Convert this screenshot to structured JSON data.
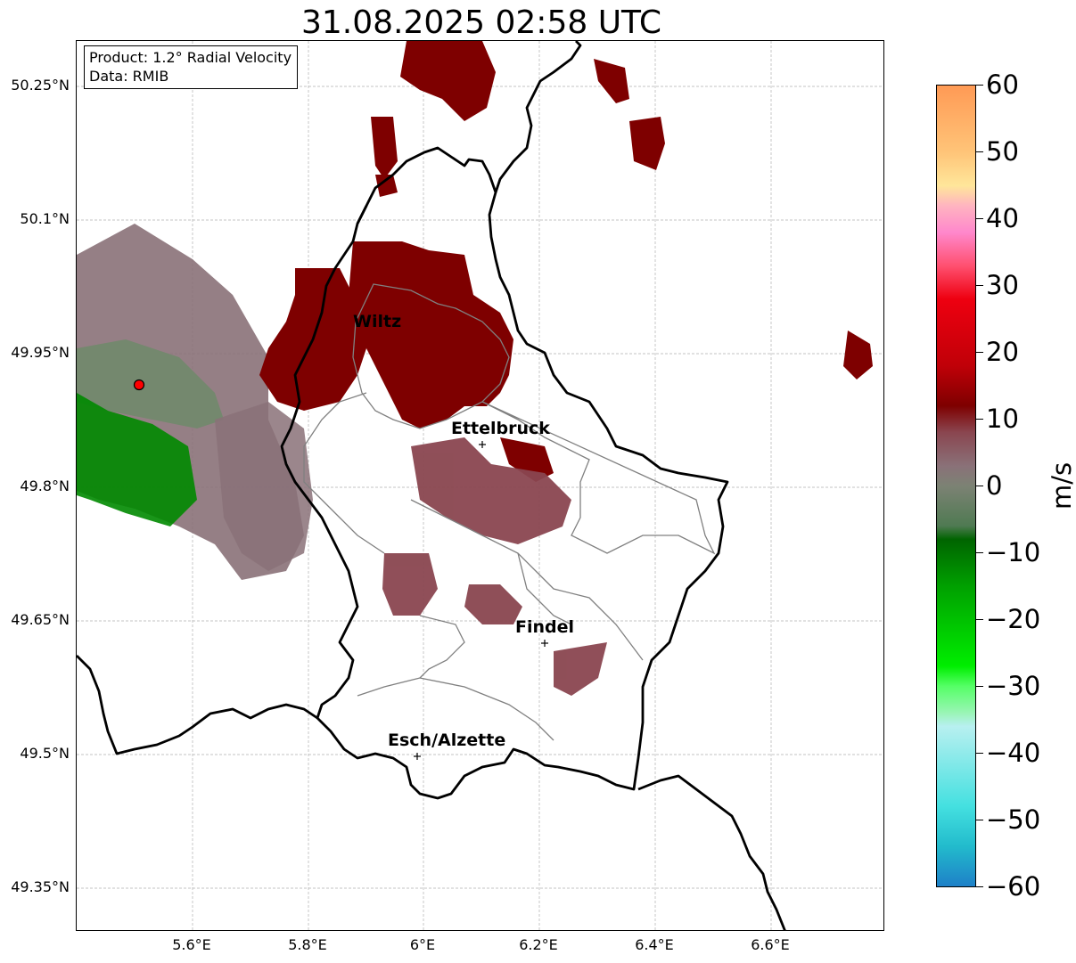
{
  "title": "31.08.2025 02:58 UTC",
  "info": {
    "product": "Product: 1.2° Radial Velocity",
    "source": "Data: RMIB"
  },
  "axes": {
    "lat_labels": [
      "50.25°N",
      "50.1°N",
      "49.95°N",
      "49.8°N",
      "49.65°N",
      "49.5°N",
      "49.35°N"
    ],
    "lon_labels": [
      "5.6°E",
      "5.8°E",
      "6°E",
      "6.2°E",
      "6.4°E",
      "6.6°E"
    ],
    "grid": true
  },
  "colorbar": {
    "unit": "m/s",
    "ticks": [
      "60",
      "50",
      "40",
      "30",
      "20",
      "10",
      "0",
      "−10",
      "−20",
      "−30",
      "−40",
      "−50",
      "−60"
    ],
    "range": [
      -60,
      60
    ],
    "stops": [
      {
        "value": 60,
        "color": "#ff9a55"
      },
      {
        "value": 50,
        "color": "#ffc478"
      },
      {
        "value": 45,
        "color": "#ffe69a"
      },
      {
        "value": 42,
        "color": "#ffb4c0"
      },
      {
        "value": 38,
        "color": "#ff88cc"
      },
      {
        "value": 33,
        "color": "#ff5070"
      },
      {
        "value": 28,
        "color": "#ee0010"
      },
      {
        "value": 18,
        "color": "#c00008"
      },
      {
        "value": 12,
        "color": "#7e0000"
      },
      {
        "value": 8,
        "color": "#8a4650"
      },
      {
        "value": 3,
        "color": "#8a7178"
      },
      {
        "value": 0,
        "color": "#7c8274"
      },
      {
        "value": -6,
        "color": "#4f7a52"
      },
      {
        "value": -8,
        "color": "#006400"
      },
      {
        "value": -15,
        "color": "#00a000"
      },
      {
        "value": -27,
        "color": "#00ee00"
      },
      {
        "value": -30,
        "color": "#55ff66"
      },
      {
        "value": -34,
        "color": "#99f5b5"
      },
      {
        "value": -36,
        "color": "#b8f0f0"
      },
      {
        "value": -48,
        "color": "#44e0e0"
      },
      {
        "value": -54,
        "color": "#22bbcc"
      },
      {
        "value": -60,
        "color": "#1e80c8"
      }
    ]
  },
  "cities": [
    {
      "name": "Wiltz"
    },
    {
      "name": "Ettelbruck"
    },
    {
      "name": "Findel"
    },
    {
      "name": "Esch/Alzette"
    }
  ],
  "colors": {
    "grid": "#b0b0b0",
    "border_national": "#000000",
    "border_canton": "#808080",
    "radar_site": "#ff0000"
  }
}
